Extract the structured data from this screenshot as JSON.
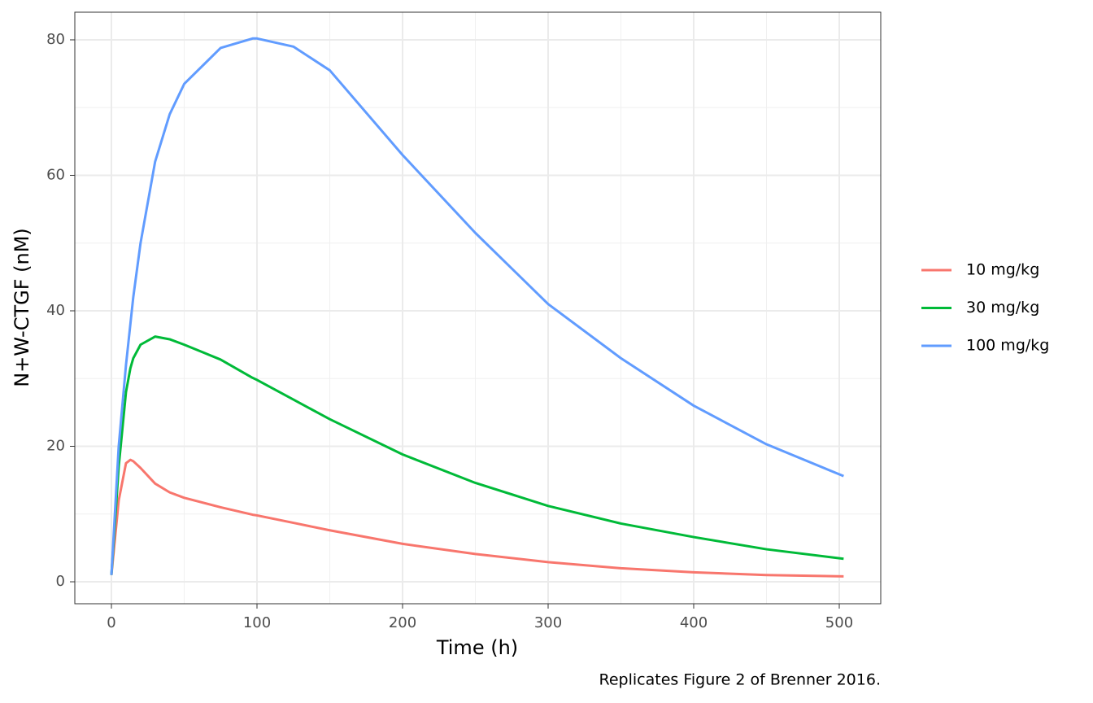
{
  "chart_data": {
    "type": "line",
    "x_label": "Time (h)",
    "y_label": "N+W-CTGF (nM)",
    "caption": "Replicates Figure 2 of Brenner 2016.",
    "x": [
      0,
      5,
      10,
      13,
      15,
      20,
      30,
      40,
      50,
      75,
      97,
      100,
      125,
      150,
      200,
      250,
      300,
      350,
      400,
      450,
      503
    ],
    "series": [
      {
        "name": "10 mg/kg",
        "color": "#f8766d",
        "values": [
          1,
          12,
          17.5,
          18,
          17.8,
          16.8,
          14.5,
          13.2,
          12.4,
          11,
          9.9,
          9.8,
          8.7,
          7.6,
          5.6,
          4.1,
          2.9,
          2,
          1.4,
          1,
          0.8
        ]
      },
      {
        "name": "30 mg/kg",
        "color": "#00ba38",
        "values": [
          1,
          17,
          28,
          31.5,
          33,
          35,
          36.2,
          35.8,
          35,
          32.8,
          30.1,
          29.8,
          26.9,
          24,
          18.8,
          14.6,
          11.2,
          8.6,
          6.6,
          4.8,
          3.4
        ]
      },
      {
        "name": "100 mg/kg",
        "color": "#619cff",
        "values": [
          1,
          20,
          32,
          38,
          42,
          50,
          62,
          69,
          73.5,
          78.8,
          80.2,
          80.2,
          79,
          75.5,
          63,
          51.5,
          41,
          33,
          26,
          20.3,
          15.6
        ]
      }
    ],
    "xlim": [
      -25.15,
      528.5
    ],
    "ylim": [
      -3.24,
      84.08
    ],
    "xticks": [
      0,
      100,
      200,
      300,
      400,
      500
    ],
    "yticks": [
      0,
      20,
      40,
      60,
      80
    ],
    "grid": true,
    "legend": "right"
  }
}
